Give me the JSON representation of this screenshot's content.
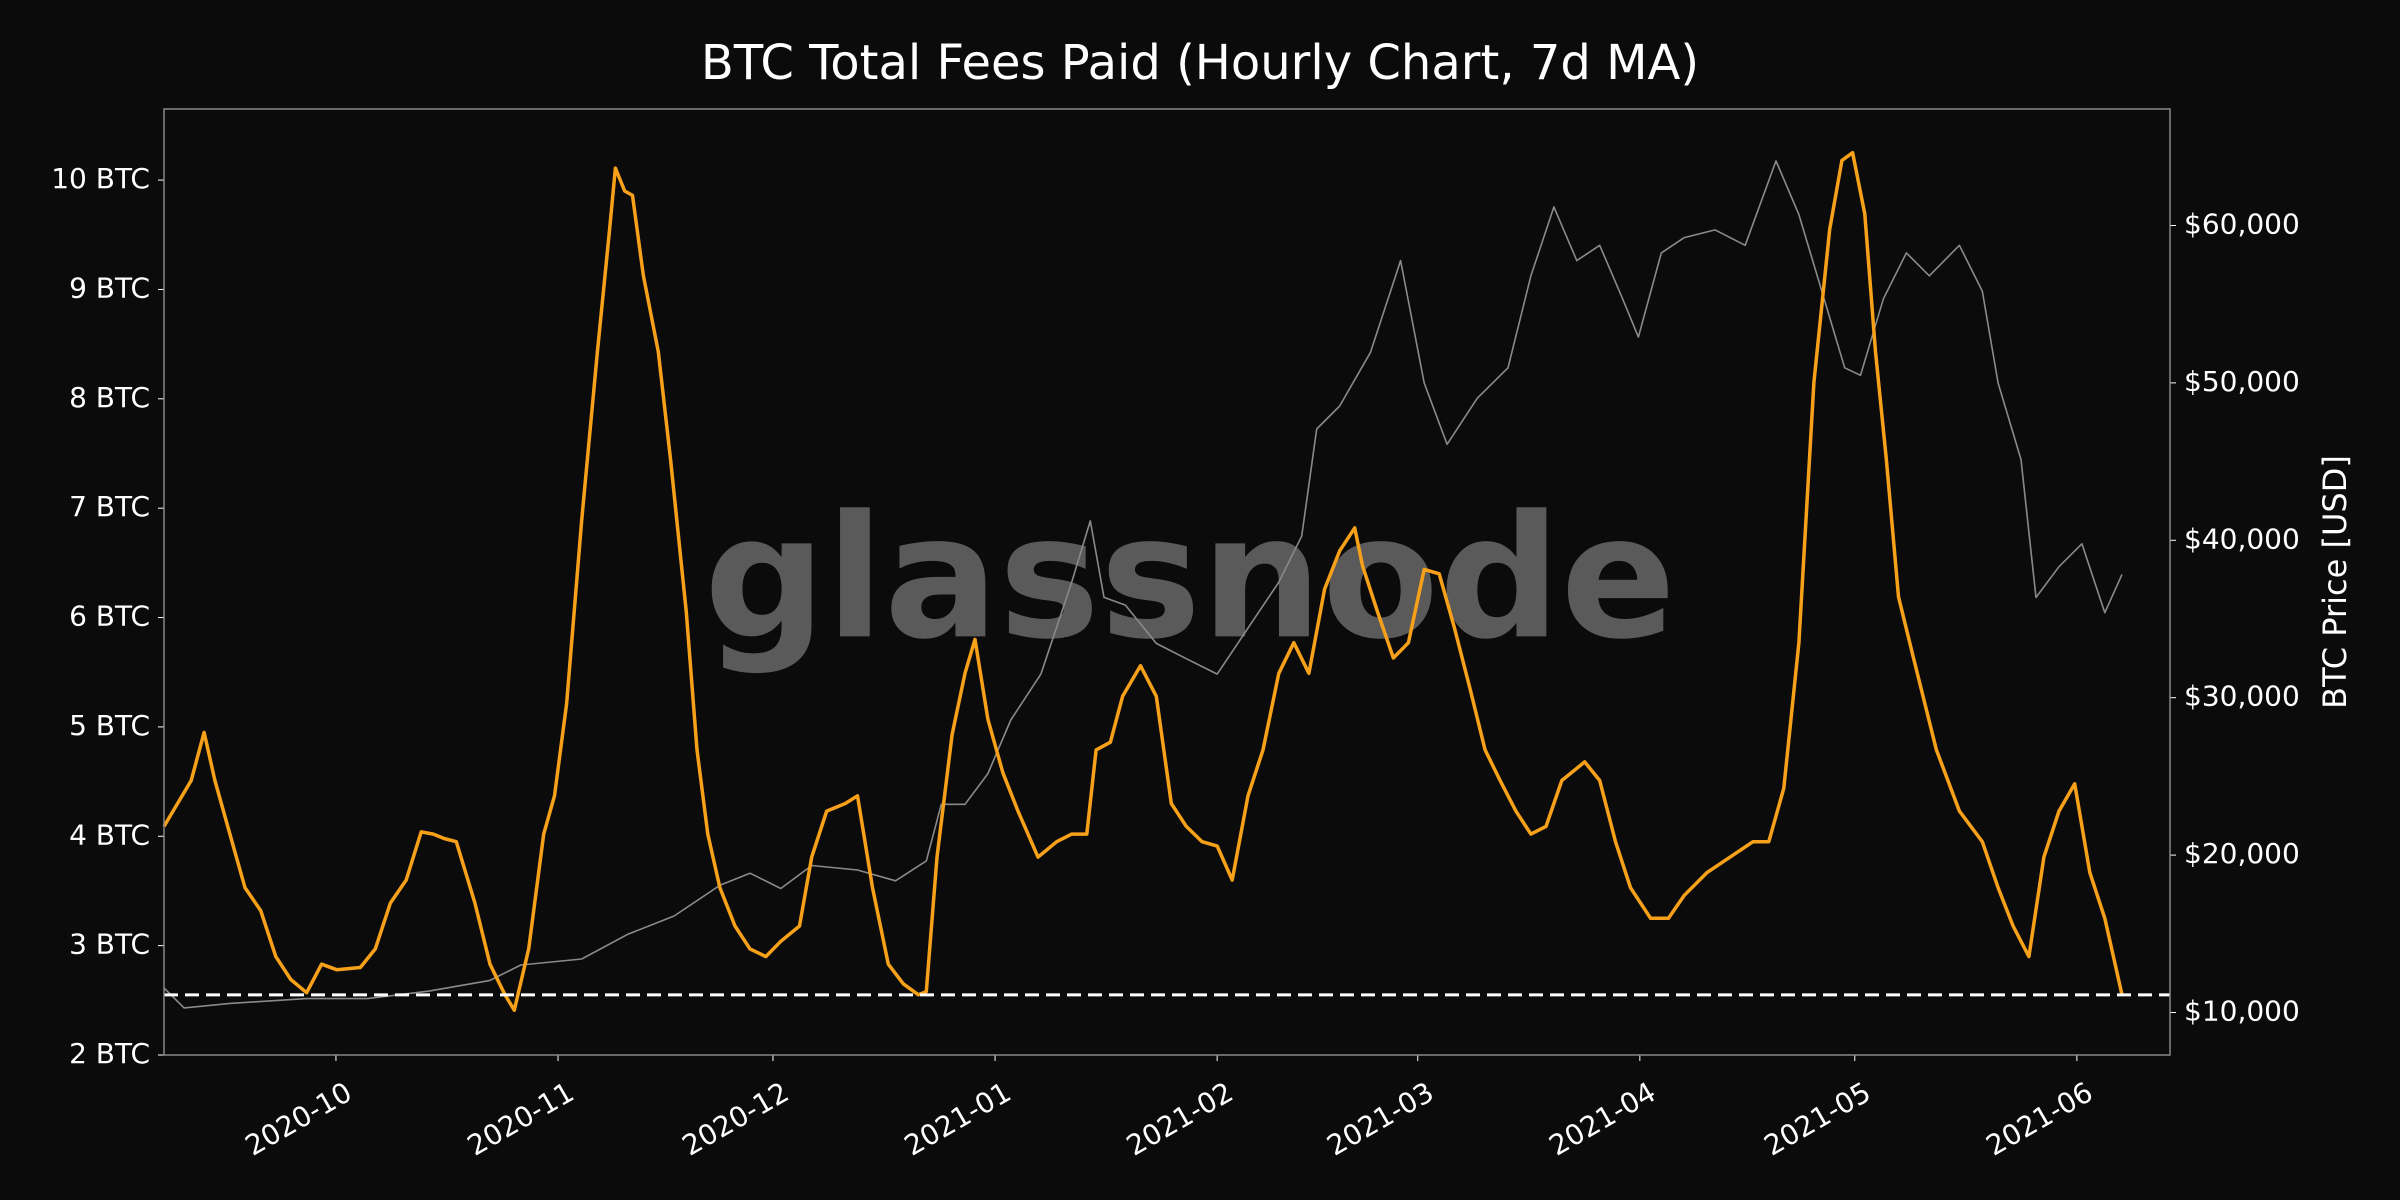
{
  "chart_data": {
    "type": "line",
    "title": "BTC Total Fees Paid (Hourly Chart, 7d MA)",
    "y2label": "BTC Price [USD]",
    "watermark": "glassnode",
    "xlim": [
      0,
      280
    ],
    "xticks": [
      {
        "value": 24,
        "label": "2020-10"
      },
      {
        "value": 55,
        "label": "2020-11"
      },
      {
        "value": 85,
        "label": "2020-12"
      },
      {
        "value": 116,
        "label": "2021-01"
      },
      {
        "value": 147,
        "label": "2021-02"
      },
      {
        "value": 175,
        "label": "2021-03"
      },
      {
        "value": 206,
        "label": "2021-04"
      },
      {
        "value": 236,
        "label": "2021-05"
      },
      {
        "value": 267,
        "label": "2021-06"
      }
    ],
    "ylim": [
      2,
      10.65
    ],
    "yticks": [
      {
        "value": 2,
        "label": "2 BTC"
      },
      {
        "value": 3,
        "label": "3 BTC"
      },
      {
        "value": 4,
        "label": "4 BTC"
      },
      {
        "value": 5,
        "label": "5 BTC"
      },
      {
        "value": 6,
        "label": "6 BTC"
      },
      {
        "value": 7,
        "label": "7 BTC"
      },
      {
        "value": 8,
        "label": "8 BTC"
      },
      {
        "value": 9,
        "label": "9 BTC"
      },
      {
        "value": 10,
        "label": "10 BTC"
      }
    ],
    "y2lim": [
      7300,
      67400
    ],
    "y2ticks": [
      {
        "value": 10000,
        "label": "$10,000"
      },
      {
        "value": 20000,
        "label": "$20,000"
      },
      {
        "value": 30000,
        "label": "$30,000"
      },
      {
        "value": 40000,
        "label": "$40,000"
      },
      {
        "value": 50000,
        "label": "$50,000"
      },
      {
        "value": 60000,
        "label": "$60,000"
      }
    ],
    "hline": 2.55,
    "hline_color": "#ffffff",
    "series": [
      {
        "name": "BTC Price",
        "color": "#8a8a8a",
        "axis": "y2",
        "x": [
          0,
          2.8,
          9.2,
          19.9,
          28.4,
          37.0,
          45.5,
          49.8,
          58.3,
          64.7,
          71.2,
          77.6,
          81.8,
          86.1,
          90.4,
          96.8,
          102.1,
          106.4,
          108.5,
          111.8,
          115.0,
          118.2,
          122.4,
          126.7,
          129.3,
          131.2,
          134.2,
          138.5,
          142.7,
          147.0,
          151.3,
          155.6,
          158.8,
          160.9,
          164.1,
          168.4,
          172.6,
          175.9,
          179.1,
          183.3,
          187.6,
          190.8,
          194.0,
          197.2,
          200.4,
          203.6,
          205.8,
          209.0,
          212.2,
          216.5,
          220.7,
          225.0,
          228.2,
          231.4,
          234.6,
          236.8,
          240.0,
          243.2,
          246.4,
          250.6,
          253.8,
          256.0,
          259.2,
          261.3,
          264.5,
          267.7,
          270.9,
          273.3
        ],
        "values": [
          11560,
          10290,
          10580,
          10880,
          10880,
          11360,
          12040,
          13020,
          13400,
          14960,
          16130,
          18080,
          18850,
          17880,
          19340,
          19050,
          18370,
          19630,
          23230,
          23230,
          25180,
          28580,
          31500,
          37340,
          41230,
          36370,
          35880,
          33450,
          32480,
          31500,
          34420,
          37340,
          40260,
          47070,
          48530,
          51940,
          57770,
          49990,
          46100,
          49020,
          50960,
          56800,
          61180,
          57770,
          58740,
          55340,
          52910,
          58260,
          59230,
          59720,
          58740,
          64100,
          60690,
          55830,
          50960,
          50480,
          55340,
          58260,
          56800,
          58740,
          55830,
          49990,
          45130,
          36370,
          38320,
          39780,
          35400,
          37830
        ]
      },
      {
        "name": "Total Fees",
        "color": "#f7a11a",
        "x": [
          0,
          3.8,
          5.6,
          7.1,
          9.2,
          11.3,
          13.5,
          15.6,
          17.7,
          19.9,
          22.0,
          24.1,
          27.4,
          29.5,
          31.6,
          33.8,
          35.9,
          37.6,
          39.1,
          40.8,
          43.4,
          45.5,
          47.6,
          48.9,
          50.9,
          53.0,
          54.5,
          56.2,
          58.3,
          60.5,
          62.2,
          63.0,
          64.3,
          65.4,
          66.9,
          69.0,
          70.7,
          72.9,
          74.4,
          75.9,
          77.6,
          79.7,
          81.8,
          84.0,
          86.1,
          88.7,
          90.4,
          92.5,
          95.1,
          96.8,
          98.9,
          101.1,
          103.2,
          105.3,
          106.4,
          107.9,
          110.0,
          111.8,
          113.2,
          115.0,
          117.1,
          119.2,
          122.0,
          124.6,
          126.7,
          128.8,
          130.1,
          132.1,
          133.8,
          136.3,
          138.5,
          140.6,
          142.7,
          144.9,
          147.0,
          149.1,
          151.3,
          153.4,
          155.6,
          157.7,
          159.8,
          162.0,
          164.1,
          166.2,
          167.3,
          169.4,
          171.6,
          173.7,
          175.9,
          178.0,
          180.1,
          182.3,
          184.4,
          186.5,
          188.7,
          190.8,
          192.9,
          195.1,
          198.3,
          200.4,
          202.6,
          204.7,
          207.5,
          210.0,
          212.2,
          215.4,
          218.6,
          221.8,
          224.0,
          226.1,
          228.2,
          230.3,
          232.5,
          234.2,
          235.7,
          237.4,
          238.9,
          240.4,
          242.1,
          244.2,
          247.4,
          250.6,
          253.8,
          256.0,
          258.1,
          260.3,
          262.4,
          264.5,
          266.7,
          268.8,
          270.9,
          273.3
        ],
        "values": [
          4.09,
          4.51,
          4.95,
          4.51,
          4.02,
          3.53,
          3.32,
          2.9,
          2.69,
          2.57,
          2.83,
          2.78,
          2.8,
          2.97,
          3.39,
          3.6,
          4.04,
          4.02,
          3.98,
          3.95,
          3.39,
          2.83,
          2.55,
          2.41,
          2.97,
          4.02,
          4.37,
          5.21,
          6.89,
          8.43,
          9.55,
          10.11,
          9.9,
          9.86,
          9.13,
          8.43,
          7.45,
          6.05,
          4.79,
          4.02,
          3.53,
          3.18,
          2.97,
          2.9,
          3.04,
          3.18,
          3.81,
          4.23,
          4.3,
          4.37,
          3.53,
          2.83,
          2.65,
          2.55,
          2.58,
          3.81,
          4.93,
          5.49,
          5.8,
          5.07,
          4.58,
          4.23,
          3.81,
          3.95,
          4.02,
          4.02,
          4.79,
          4.86,
          5.28,
          5.56,
          5.28,
          4.3,
          4.09,
          3.95,
          3.91,
          3.6,
          4.37,
          4.79,
          5.49,
          5.77,
          5.49,
          6.26,
          6.61,
          6.82,
          6.47,
          6.05,
          5.63,
          5.77,
          6.44,
          6.4,
          5.91,
          5.35,
          4.79,
          4.51,
          4.23,
          4.02,
          4.09,
          4.51,
          4.68,
          4.51,
          3.95,
          3.53,
          3.25,
          3.25,
          3.46,
          3.67,
          3.81,
          3.95,
          3.95,
          4.44,
          5.77,
          8.15,
          9.55,
          10.18,
          10.25,
          9.69,
          8.43,
          7.45,
          6.19,
          5.63,
          4.79,
          4.23,
          3.95,
          3.53,
          3.18,
          2.9,
          3.81,
          4.23,
          4.48,
          3.67,
          3.25,
          2.55
        ]
      }
    ]
  }
}
